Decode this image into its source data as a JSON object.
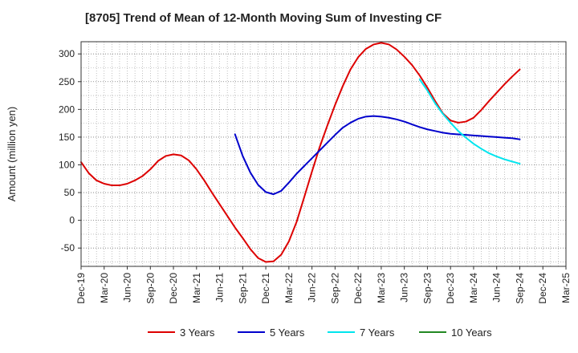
{
  "chart_data": {
    "type": "line",
    "title": "[8705]  Trend of Mean of 12-Month Moving Sum of Investing CF",
    "ylabel": "Amount (million yen)",
    "xlabel": "",
    "ylim": [
      -83,
      322
    ],
    "yticks": [
      -50,
      0,
      50,
      100,
      150,
      200,
      250,
      300
    ],
    "x_tick_labels": [
      "Dec-19",
      "Mar-20",
      "Jun-20",
      "Sep-20",
      "Dec-20",
      "Mar-21",
      "Jun-21",
      "Sep-21",
      "Dec-21",
      "Mar-22",
      "Jun-22",
      "Sep-22",
      "Dec-22",
      "Mar-23",
      "Jun-23",
      "Sep-23",
      "Dec-23",
      "Mar-24",
      "Jun-24",
      "Sep-24",
      "Dec-24",
      "Mar-25"
    ],
    "x_unit": "months since Dec-19",
    "xlim": [
      0,
      63
    ],
    "grid": true,
    "legend_position": "bottom",
    "series": [
      {
        "name": "3 Years",
        "color": "#dd0000",
        "x": [
          0,
          1,
          2,
          3,
          4,
          5,
          6,
          7,
          8,
          9,
          10,
          11,
          12,
          13,
          14,
          15,
          16,
          17,
          18,
          19,
          20,
          21,
          22,
          23,
          24,
          25,
          26,
          27,
          28,
          29,
          30,
          31,
          32,
          33,
          34,
          35,
          36,
          37,
          38,
          39,
          40,
          41,
          42,
          43,
          44,
          45,
          46,
          47,
          48,
          49,
          50,
          51,
          52,
          53,
          54,
          55,
          56,
          57
        ],
        "values": [
          105,
          85,
          72,
          66,
          63,
          63,
          66,
          72,
          80,
          92,
          107,
          116,
          119,
          117,
          108,
          92,
          72,
          50,
          29,
          8,
          -13,
          -32,
          -52,
          -68,
          -75,
          -74,
          -62,
          -38,
          -3,
          42,
          88,
          132,
          171,
          208,
          242,
          272,
          294,
          309,
          317,
          320,
          317,
          308,
          295,
          280,
          261,
          239,
          215,
          193,
          180,
          176,
          178,
          185,
          199,
          215,
          230,
          245,
          259,
          272
        ]
      },
      {
        "name": "5 Years",
        "color": "#0000cc",
        "x": [
          20,
          21,
          22,
          23,
          24,
          25,
          26,
          27,
          28,
          29,
          30,
          31,
          32,
          33,
          34,
          35,
          36,
          37,
          38,
          39,
          40,
          41,
          42,
          43,
          44,
          45,
          46,
          47,
          48,
          49,
          50,
          51,
          52,
          53,
          54,
          55,
          56,
          57
        ],
        "values": [
          155,
          116,
          86,
          64,
          51,
          47,
          53,
          68,
          84,
          98,
          112,
          126,
          140,
          154,
          167,
          176,
          183,
          187,
          188,
          187,
          185,
          182,
          178,
          173,
          168,
          164,
          161,
          158,
          156,
          155,
          154,
          153,
          152,
          151,
          150,
          149,
          148,
          146
        ]
      },
      {
        "name": "7 Years",
        "color": "#00e5ee",
        "x": [
          44,
          45,
          46,
          47,
          48,
          49,
          50,
          51,
          52,
          53,
          54,
          55,
          56,
          57
        ],
        "values": [
          254,
          234,
          211,
          192,
          176,
          161,
          149,
          138,
          129,
          121,
          115,
          110,
          106,
          102
        ]
      },
      {
        "name": "10 Years",
        "color": "#228822",
        "x": [],
        "values": []
      }
    ]
  }
}
